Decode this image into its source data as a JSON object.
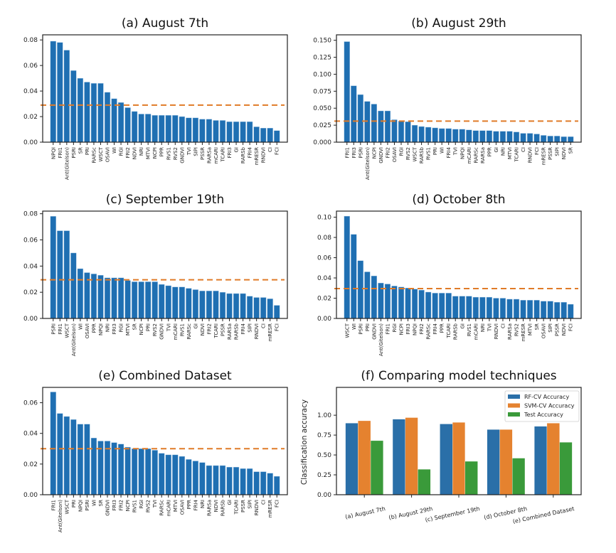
{
  "figure": {
    "threshold_color": "#e07b28",
    "bar_color": "#1f6fb2",
    "series_colors": [
      "#2a6fa8",
      "#e5822f",
      "#3a9a3a"
    ]
  },
  "chart_data": [
    {
      "type": "bar",
      "title": "(a) August 7th",
      "xlabel": "",
      "ylabel": "",
      "ylim": [
        0,
        0.084
      ],
      "yticks": [
        "0.00",
        "0.02",
        "0.04",
        "0.06",
        "0.08"
      ],
      "ytick_values": [
        0,
        0.02,
        0.04,
        0.06,
        0.08
      ],
      "threshold": 0.029,
      "categories": [
        "NPQI",
        "FRI1",
        "Ant(Gitelson)",
        "PSRI",
        "SR",
        "PRI",
        "RARSc",
        "WSCT",
        "OSAVI",
        "WI",
        "RGI",
        "FRI2",
        "NDVI",
        "NRI",
        "MTVI",
        "NCPI",
        "PPR",
        "RVS1",
        "RVS2",
        "GNDVI",
        "TVI",
        "SIPI",
        "PSSR",
        "RARSa",
        "mCARI",
        "TCARI",
        "FRI3",
        "GI",
        "RARSb",
        "FRI4",
        "mRESR",
        "RNDVI",
        "CI",
        "FCI"
      ],
      "values": [
        0.079,
        0.078,
        0.072,
        0.056,
        0.05,
        0.047,
        0.046,
        0.046,
        0.039,
        0.034,
        0.031,
        0.027,
        0.024,
        0.022,
        0.022,
        0.021,
        0.021,
        0.021,
        0.021,
        0.02,
        0.019,
        0.019,
        0.018,
        0.018,
        0.017,
        0.017,
        0.016,
        0.016,
        0.016,
        0.016,
        0.012,
        0.011,
        0.011,
        0.009
      ]
    },
    {
      "type": "bar",
      "title": "(b) August 29th",
      "xlabel": "",
      "ylabel": "",
      "ylim": [
        0,
        0.158
      ],
      "yticks": [
        "0.000",
        "0.025",
        "0.050",
        "0.075",
        "0.100",
        "0.125",
        "0.150"
      ],
      "ytick_values": [
        0,
        0.025,
        0.05,
        0.075,
        0.1,
        0.125,
        0.15
      ],
      "threshold": 0.031,
      "categories": [
        "FRI1",
        "FRI3",
        "PSRI",
        "Ant(Gitelson)",
        "NCPI",
        "GNDVI",
        "FRI2",
        "OSAVI",
        "RGI",
        "RVS2",
        "WSCT",
        "RARSb",
        "RVS1",
        "PRI",
        "WI",
        "FRI4",
        "TVI",
        "NPQI",
        "mCARI",
        "RARSc",
        "RARSa",
        "PPR",
        "GI",
        "NRI",
        "MTVI",
        "TCARI",
        "CI",
        "RNDVI",
        "FCI",
        "mRESR",
        "PSSR",
        "SIPI",
        "NDVI",
        "SR"
      ],
      "values": [
        0.148,
        0.083,
        0.07,
        0.06,
        0.056,
        0.046,
        0.046,
        0.033,
        0.031,
        0.03,
        0.025,
        0.023,
        0.022,
        0.021,
        0.02,
        0.02,
        0.019,
        0.019,
        0.018,
        0.017,
        0.017,
        0.017,
        0.016,
        0.016,
        0.016,
        0.015,
        0.013,
        0.013,
        0.012,
        0.01,
        0.009,
        0.009,
        0.008,
        0.008
      ]
    },
    {
      "type": "bar",
      "title": "(c) September 19th",
      "xlabel": "",
      "ylabel": "",
      "ylim": [
        0,
        0.082
      ],
      "yticks": [
        "0.00",
        "0.02",
        "0.04",
        "0.06",
        "0.08"
      ],
      "ytick_values": [
        0,
        0.02,
        0.04,
        0.06,
        0.08
      ],
      "threshold": 0.0295,
      "categories": [
        "PSRI",
        "FRI1",
        "WSCT",
        "Ant(Gitelson)",
        "WI",
        "OSAVI",
        "PPR",
        "NPQI",
        "NRI",
        "FRI3",
        "RGI",
        "MTVI",
        "SR",
        "NCPI",
        "PRI",
        "RVS2",
        "GNDVI",
        "TVI",
        "mCARI",
        "RVS1",
        "RARSc",
        "GI",
        "NDVI",
        "FRI2",
        "TCARI",
        "PSSR",
        "RARSa",
        "RARSb",
        "FRI4",
        "SIPI",
        "RNDVI",
        "CI",
        "mRESR",
        "FCI"
      ],
      "values": [
        0.078,
        0.067,
        0.067,
        0.05,
        0.038,
        0.035,
        0.034,
        0.033,
        0.031,
        0.031,
        0.031,
        0.029,
        0.028,
        0.028,
        0.028,
        0.028,
        0.026,
        0.025,
        0.024,
        0.024,
        0.023,
        0.022,
        0.021,
        0.021,
        0.021,
        0.02,
        0.019,
        0.019,
        0.019,
        0.017,
        0.016,
        0.016,
        0.015,
        0.01
      ]
    },
    {
      "type": "bar",
      "title": "(d) October 8th",
      "xlabel": "",
      "ylabel": "",
      "ylim": [
        0,
        0.106
      ],
      "yticks": [
        "0.00",
        "0.02",
        "0.04",
        "0.06",
        "0.08",
        "0.10"
      ],
      "ytick_values": [
        0,
        0.02,
        0.04,
        0.06,
        0.08,
        0.1
      ],
      "threshold": 0.0295,
      "categories": [
        "WSCT",
        "WI",
        "PSRI",
        "PRI",
        "GNDVI",
        "Ant(Gitelson)",
        "FRI1",
        "RGI",
        "NCPI",
        "FRI3",
        "NPQI",
        "FRI2",
        "RARSc",
        "FRI4",
        "PPR",
        "TCARI",
        "RARSb",
        "GI",
        "RVS1",
        "mCARI",
        "NRI",
        "TVI",
        "RNDVI",
        "CI",
        "RARSa",
        "RVS2",
        "mRESR",
        "MTVI",
        "SR",
        "OSAVI",
        "SIPI",
        "PSSR",
        "NDVI",
        "FCI"
      ],
      "values": [
        0.101,
        0.083,
        0.057,
        0.046,
        0.042,
        0.035,
        0.034,
        0.032,
        0.031,
        0.03,
        0.029,
        0.028,
        0.026,
        0.025,
        0.025,
        0.025,
        0.022,
        0.022,
        0.022,
        0.021,
        0.021,
        0.021,
        0.02,
        0.02,
        0.019,
        0.019,
        0.018,
        0.018,
        0.018,
        0.017,
        0.017,
        0.016,
        0.016,
        0.014
      ]
    },
    {
      "type": "bar",
      "title": "(e) Combined Dataset",
      "xlabel": "",
      "ylabel": "",
      "ylim": [
        0,
        0.07
      ],
      "yticks": [
        "0.00",
        "0.02",
        "0.04",
        "0.06"
      ],
      "ytick_values": [
        0,
        0.02,
        0.04,
        0.06
      ],
      "threshold": 0.03,
      "categories": [
        "FRI1",
        "Ant(Gitelson)",
        "WSCT",
        "PRI",
        "NPQI",
        "PSRI",
        "WI",
        "SR",
        "GNDVI",
        "FRI3",
        "FRI2",
        "NCPI",
        "RVS1",
        "RGI",
        "RVS2",
        "TVI",
        "RARSc",
        "mCARI",
        "MTVI",
        "OSAVI",
        "PPR",
        "FRI4",
        "NRI",
        "RARSa",
        "NDVI",
        "RARSb",
        "GI",
        "TCARI",
        "PSSR",
        "SIPI",
        "RNDVI",
        "CI",
        "mRESR",
        "FCI"
      ],
      "values": [
        0.067,
        0.053,
        0.051,
        0.049,
        0.046,
        0.046,
        0.037,
        0.035,
        0.035,
        0.034,
        0.033,
        0.031,
        0.03,
        0.03,
        0.03,
        0.029,
        0.027,
        0.026,
        0.026,
        0.025,
        0.023,
        0.022,
        0.021,
        0.019,
        0.019,
        0.019,
        0.018,
        0.018,
        0.017,
        0.017,
        0.015,
        0.015,
        0.014,
        0.012
      ]
    },
    {
      "type": "bar",
      "title": "(f) Comparing model techniques",
      "xlabel": "",
      "ylabel": "Classification accuracy",
      "ylim": [
        0,
        1.35
      ],
      "yticks": [
        "0.00",
        "0.25",
        "0.50",
        "0.75",
        "1.00"
      ],
      "ytick_values": [
        0,
        0.25,
        0.5,
        0.75,
        1.0
      ],
      "legend_position": "top-right",
      "categories": [
        "(a) August 7th",
        "(b) August 29th",
        "(c) September 19th",
        "(d) October 8th",
        "(e) Combined Dataset"
      ],
      "series": [
        {
          "name": "RF-CV Accuracy",
          "values": [
            0.9,
            0.95,
            0.89,
            0.82,
            0.86
          ]
        },
        {
          "name": "SVM-CV Accuracy",
          "values": [
            0.93,
            0.97,
            0.91,
            0.82,
            0.9
          ]
        },
        {
          "name": "Test Accuracy",
          "values": [
            0.68,
            0.32,
            0.42,
            0.46,
            0.66
          ]
        }
      ]
    }
  ]
}
